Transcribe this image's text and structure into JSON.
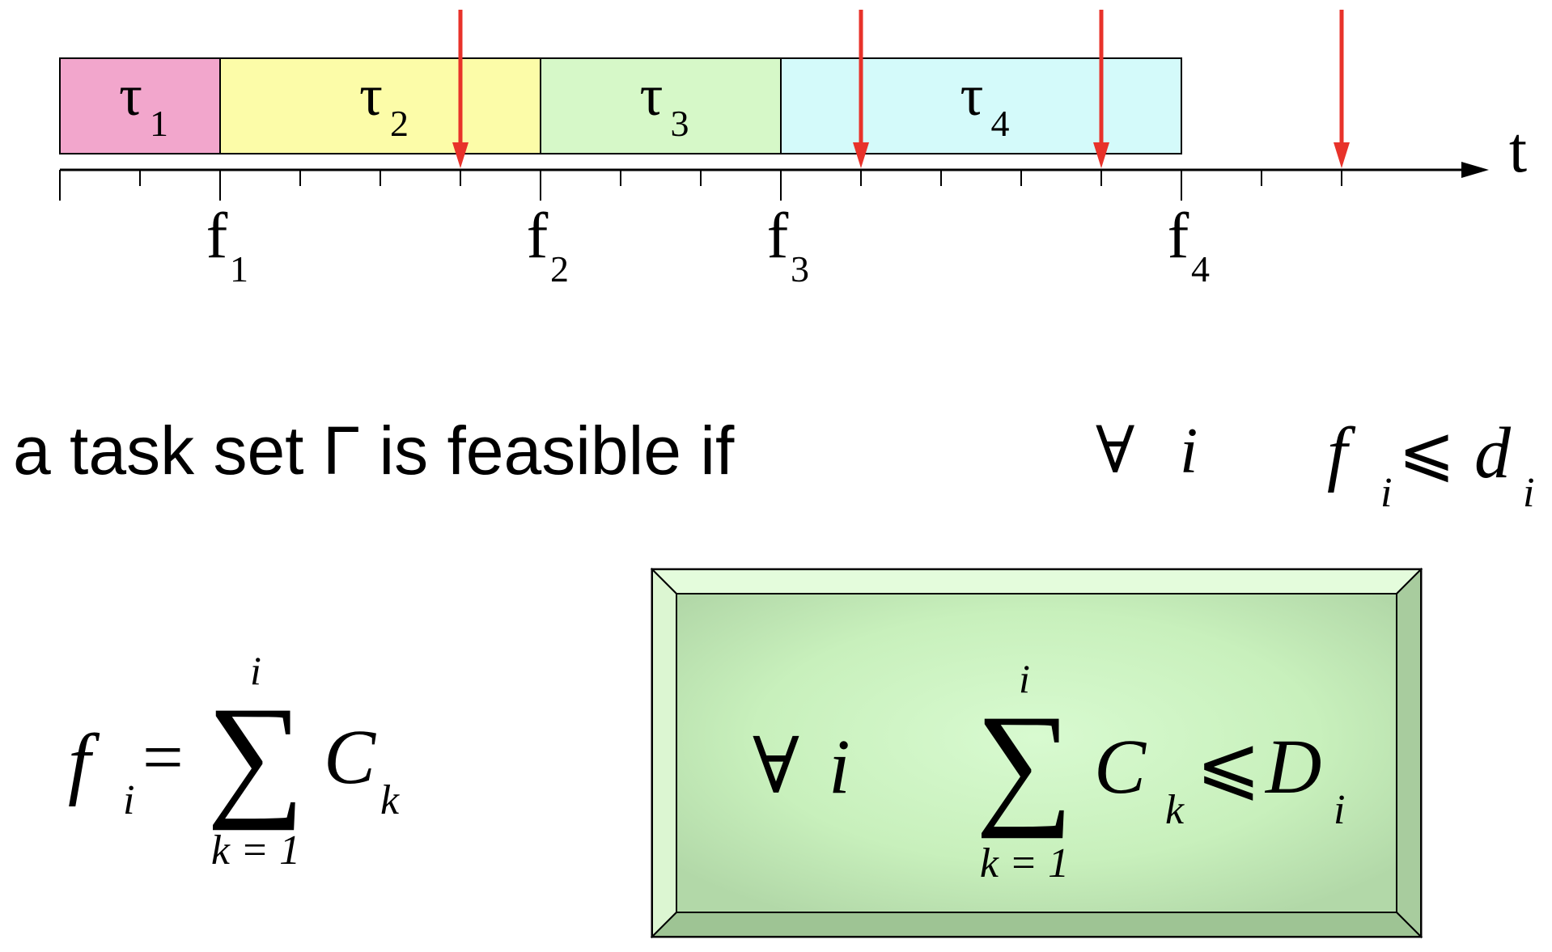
{
  "timeline": {
    "axis_label": "t",
    "tasks": [
      {
        "name": "τ",
        "sub": "1",
        "color": "#f2a6cc",
        "start": 0,
        "end": 2
      },
      {
        "name": "τ",
        "sub": "2",
        "color": "#fcfca8",
        "start": 2,
        "end": 6
      },
      {
        "name": "τ",
        "sub": "3",
        "color": "#d6f8c8",
        "start": 6,
        "end": 9
      },
      {
        "name": "τ",
        "sub": "4",
        "color": "#d4fafa",
        "start": 9,
        "end": 14
      }
    ],
    "finish_labels": [
      {
        "name": "f",
        "sub": "1",
        "at": 2
      },
      {
        "name": "f",
        "sub": "2",
        "at": 6
      },
      {
        "name": "f",
        "sub": "3",
        "at": 9
      },
      {
        "name": "f",
        "sub": "4",
        "at": 14
      }
    ],
    "deadlines": [
      5,
      10,
      13,
      16
    ],
    "ticks": 17,
    "deadline_color": "#e8322a"
  },
  "statement": {
    "text": "a task set Γ is feasible if",
    "forall": "∀",
    "var_i": "i",
    "f": "f",
    "sub_i": "i",
    "leq": "⩽",
    "d": "d",
    "d_sub": "i"
  },
  "formula_left": {
    "f": "f",
    "f_sub": "i",
    "eq": "=",
    "sigma": "∑",
    "upper": "i",
    "lower": "k = 1",
    "C": "C",
    "C_sub": "k"
  },
  "formula_box": {
    "forall": "∀",
    "var_i": "i",
    "sigma": "∑",
    "upper": "i",
    "lower": "k = 1",
    "C": "C",
    "C_sub": "k",
    "leq": "⩽",
    "D": "D",
    "D_sub": "i"
  }
}
